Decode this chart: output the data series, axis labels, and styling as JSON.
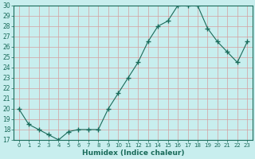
{
  "xlabel": "Humidex (Indice chaleur)",
  "x": [
    0,
    1,
    2,
    3,
    4,
    5,
    6,
    7,
    8,
    9,
    10,
    11,
    12,
    13,
    14,
    15,
    16,
    17,
    18,
    19,
    20,
    21,
    22,
    23
  ],
  "y": [
    20.0,
    18.5,
    18.0,
    17.5,
    17.0,
    17.8,
    18.0,
    18.0,
    18.0,
    20.0,
    21.5,
    23.0,
    24.5,
    26.5,
    28.0,
    28.5,
    30.0,
    30.0,
    30.0,
    27.8,
    26.5,
    25.5,
    24.5,
    26.5
  ],
  "ylim": [
    17,
    30
  ],
  "yticks": [
    17,
    18,
    19,
    20,
    21,
    22,
    23,
    24,
    25,
    26,
    27,
    28,
    29,
    30
  ],
  "xticks": [
    0,
    1,
    2,
    3,
    4,
    5,
    6,
    7,
    8,
    9,
    10,
    11,
    12,
    13,
    14,
    15,
    16,
    17,
    18,
    19,
    20,
    21,
    22,
    23
  ],
  "line_color": "#1a6b5a",
  "marker_color": "#1a6b5a",
  "bg_color": "#c8eeee",
  "grid_color": "#d4a0a0",
  "tick_label_color": "#1a6b5a",
  "xlabel_color": "#1a6b5a",
  "figsize": [
    3.2,
    2.0
  ],
  "dpi": 100
}
